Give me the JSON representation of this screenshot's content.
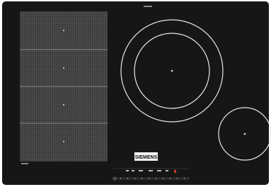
{
  "brand": "SIEMENS"
}
